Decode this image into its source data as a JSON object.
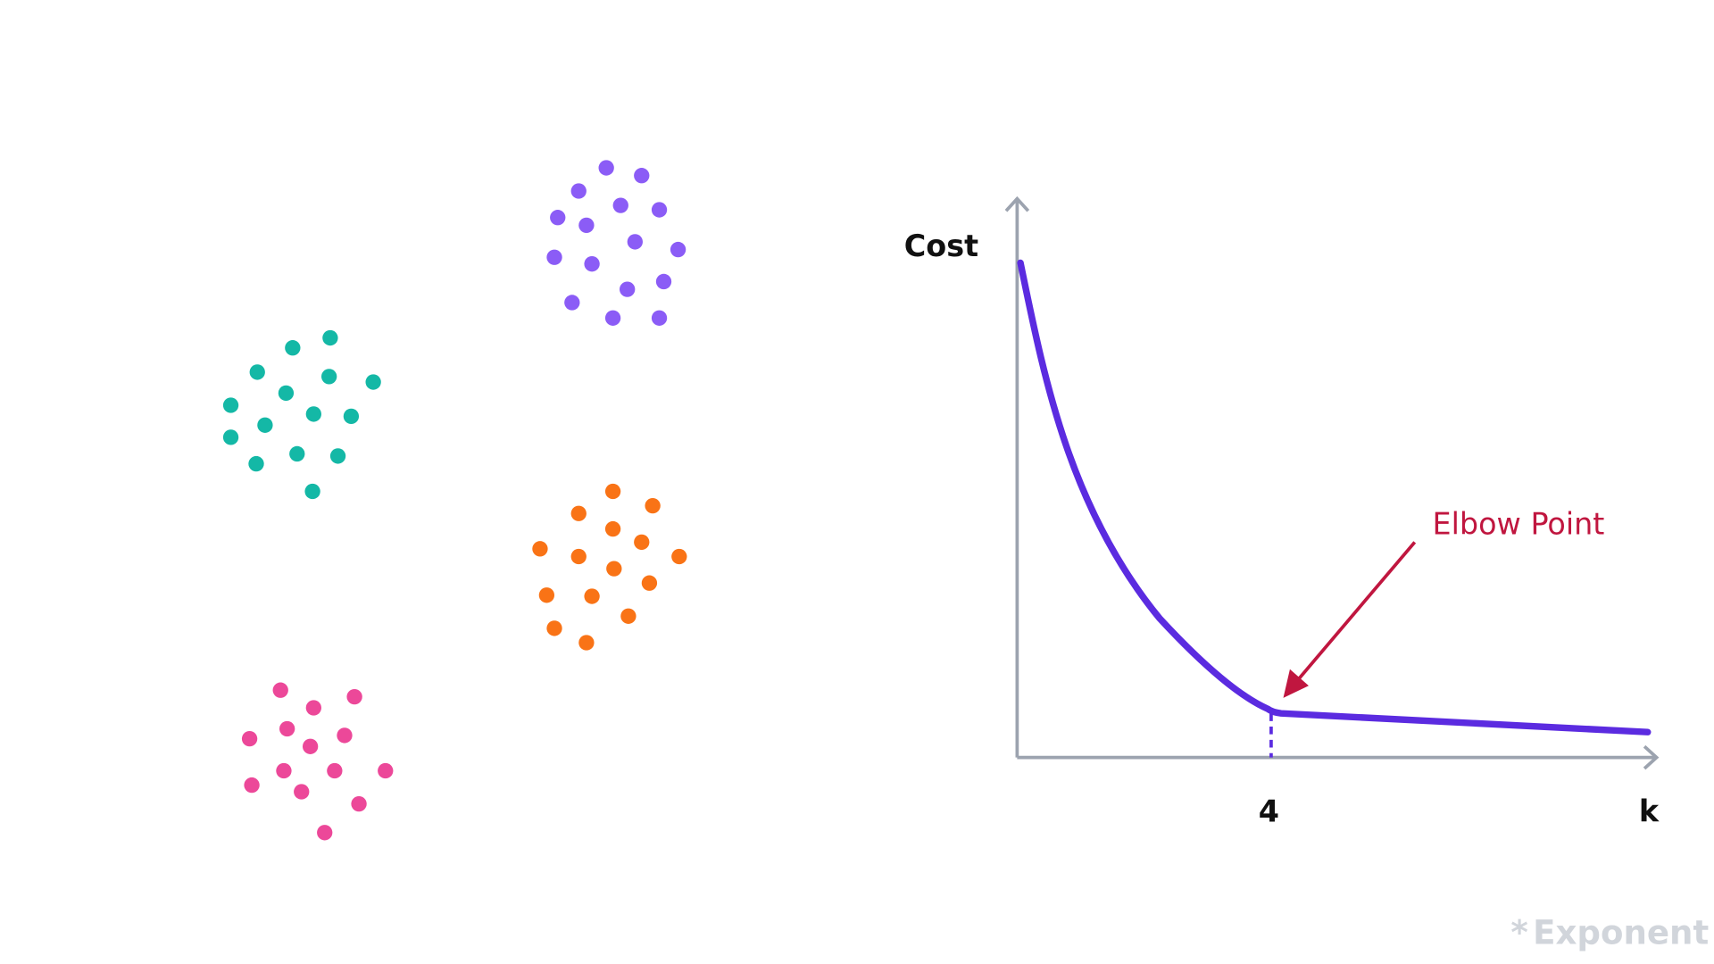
{
  "y_axis_label": "Cost",
  "x_axis_label": "k",
  "x_marker_label": "4",
  "annotation": "Elbow Point",
  "brand": "Exponent"
}
